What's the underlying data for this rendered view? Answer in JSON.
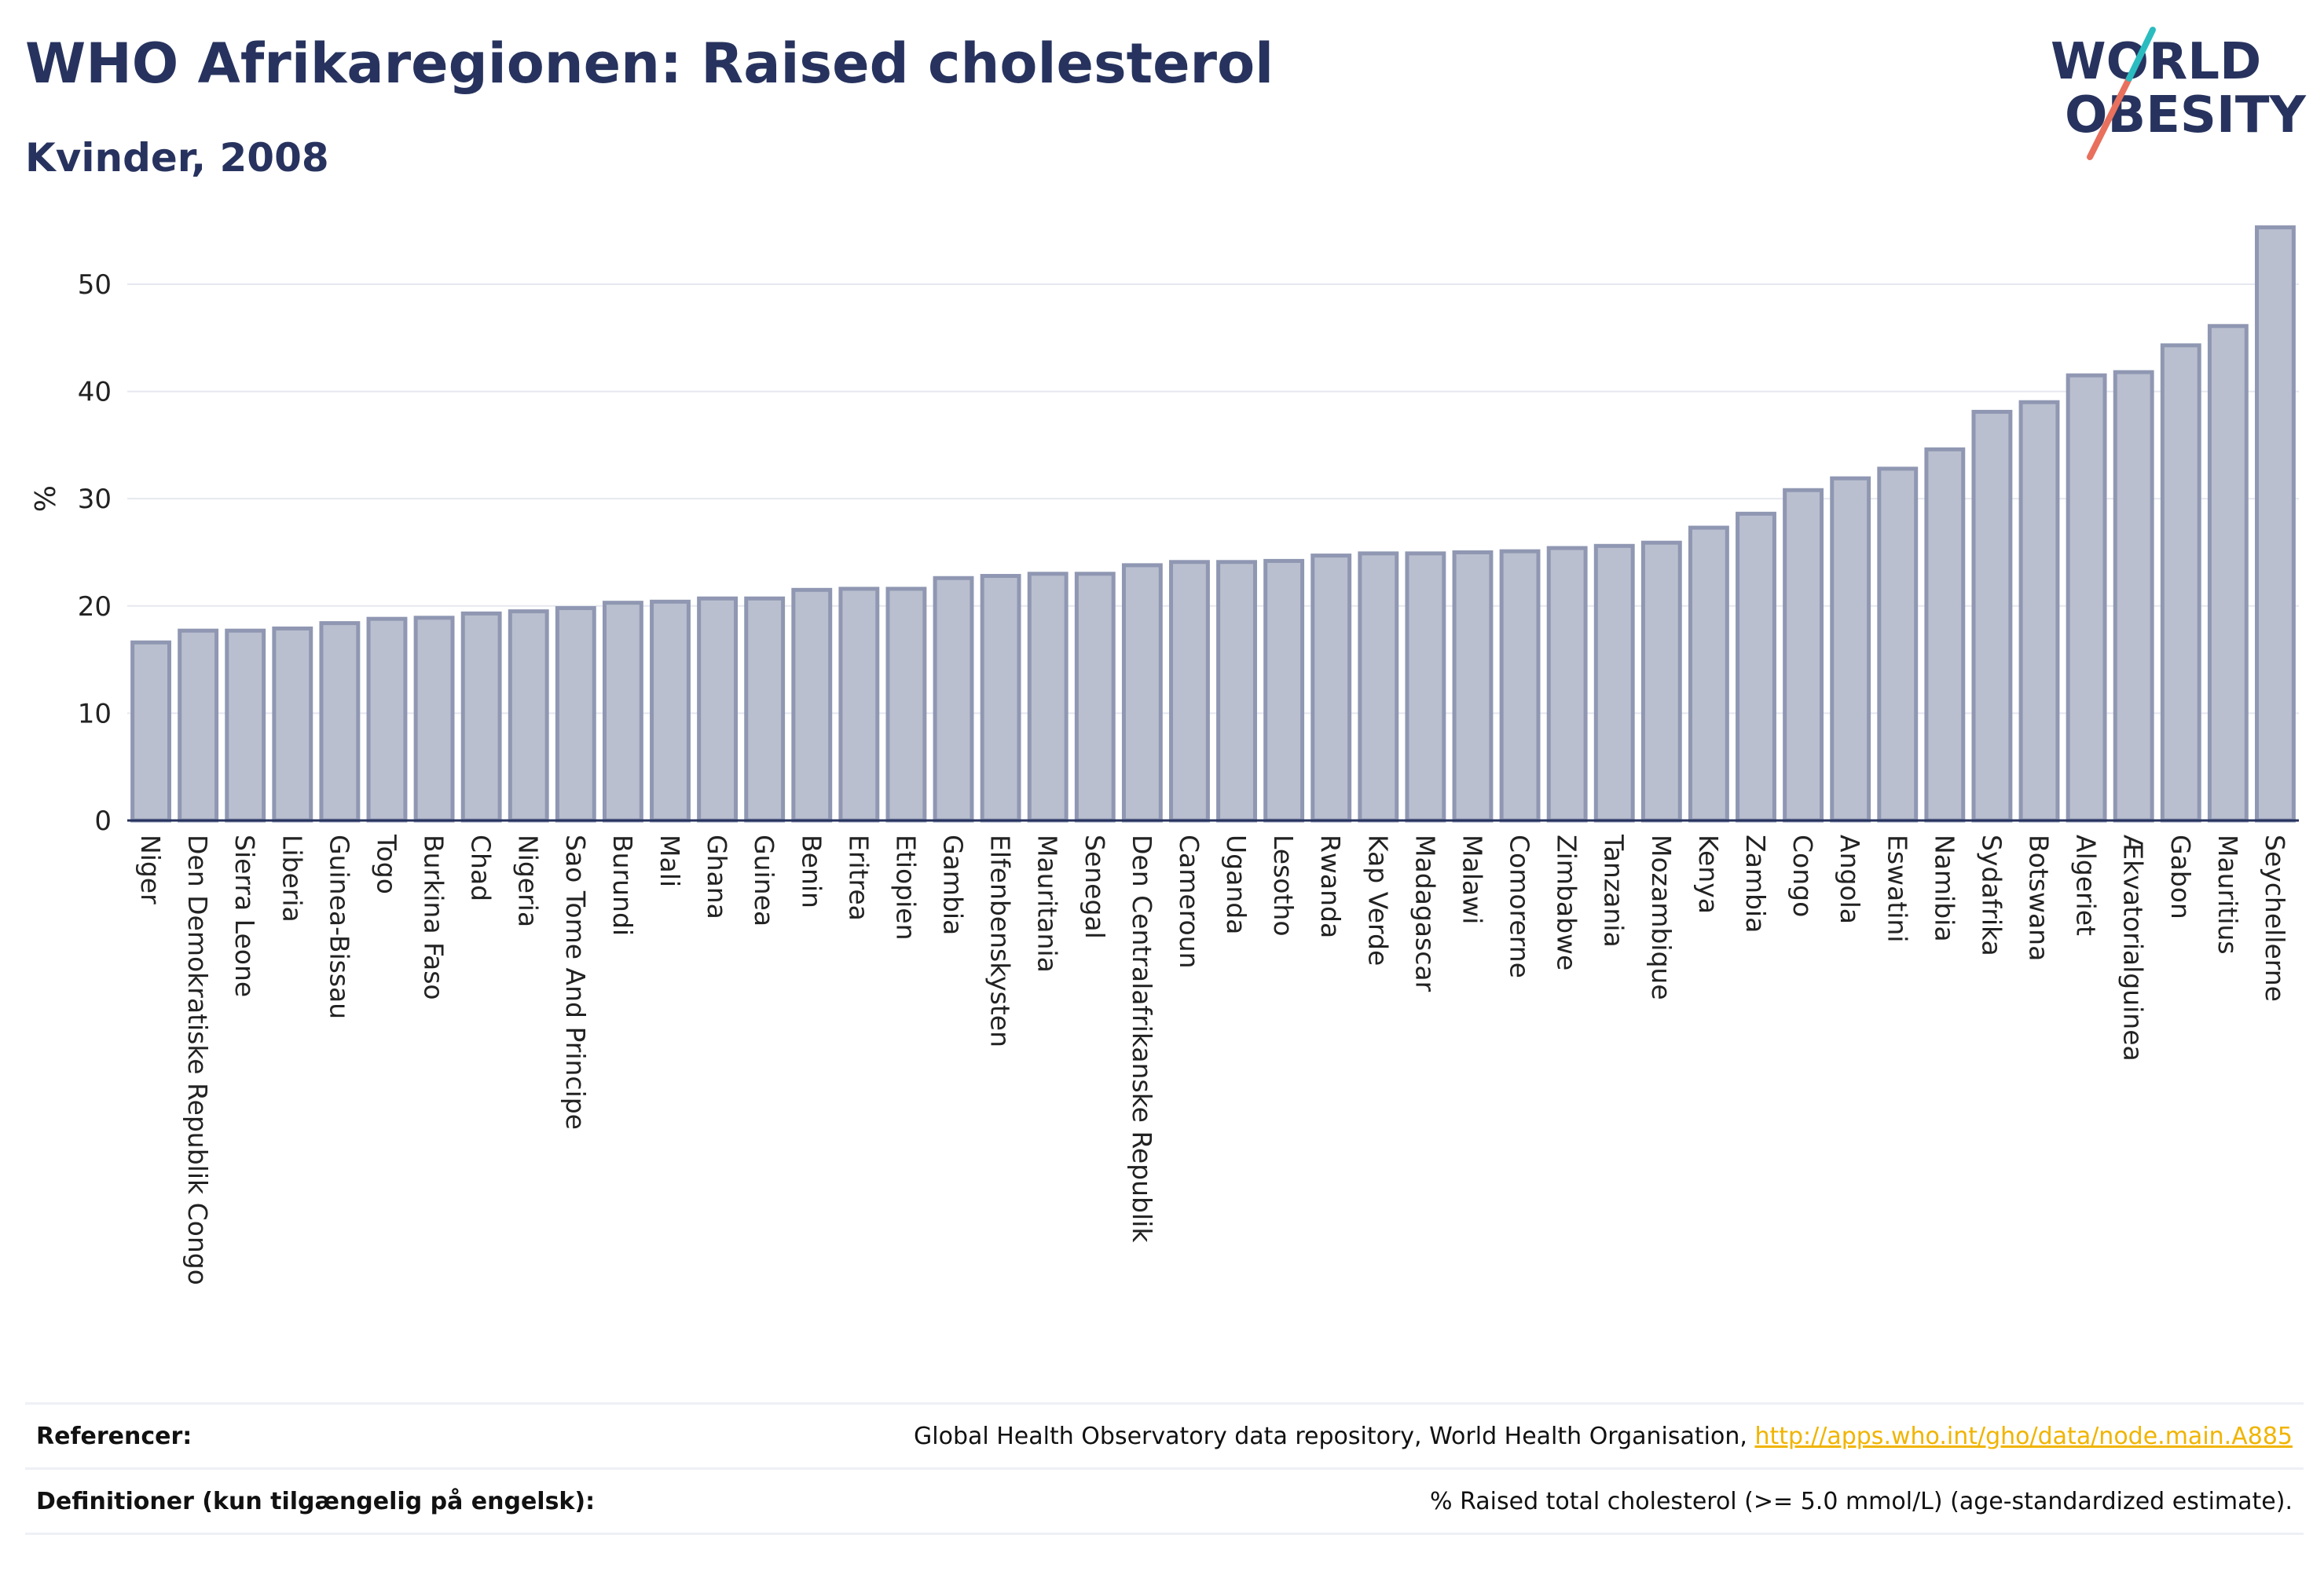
{
  "header": {
    "title": "WHO Afrikaregionen: Raised cholesterol",
    "subtitle": "Kvinder, 2008"
  },
  "logo": {
    "line1": "WORLD",
    "line2": "OBESITY"
  },
  "colors": {
    "bar_fill": "#b9bfce",
    "bar_stroke": "#8f97b2",
    "text": "#27335e",
    "grid": "#e6e8f0",
    "link": "#f0b400"
  },
  "chart_data": {
    "type": "bar",
    "ylabel": "%",
    "xlabel": "",
    "ylim": [
      0,
      56
    ],
    "yticks": [
      0,
      10,
      20,
      30,
      40,
      50
    ],
    "grid": true,
    "categories": [
      "Niger",
      "Den Demokratiske Republik Congo",
      "Sierra Leone",
      "Liberia",
      "Guinea-Bissau",
      "Togo",
      "Burkina Faso",
      "Chad",
      "Nigeria",
      "Sao Tome And Principe",
      "Burundi",
      "Mali",
      "Ghana",
      "Guinea",
      "Benin",
      "Eritrea",
      "Etiopien",
      "Gambia",
      "Elfenbenskysten",
      "Mauritania",
      "Senegal",
      "Den Centralafrikanske Republik",
      "Cameroun",
      "Uganda",
      "Lesotho",
      "Rwanda",
      "Kap Verde",
      "Madagascar",
      "Malawi",
      "Comorerne",
      "Zimbabwe",
      "Tanzania",
      "Mozambique",
      "Kenya",
      "Zambia",
      "Congo",
      "Angola",
      "Eswatini",
      "Namibia",
      "Sydafrika",
      "Botswana",
      "Algeriet",
      "Ækvatorialguinea",
      "Gabon",
      "Mauritius",
      "Seychellerne"
    ],
    "values": [
      16.6,
      17.7,
      17.7,
      17.9,
      18.4,
      18.8,
      18.9,
      19.3,
      19.5,
      19.8,
      20.3,
      20.4,
      20.7,
      20.7,
      21.5,
      21.6,
      21.6,
      22.6,
      22.8,
      23.0,
      23.0,
      23.8,
      24.1,
      24.1,
      24.2,
      24.7,
      24.9,
      24.9,
      25.0,
      25.1,
      25.4,
      25.6,
      25.9,
      27.3,
      28.6,
      30.8,
      31.9,
      32.8,
      34.6,
      38.1,
      39.0,
      41.5,
      41.8,
      44.3,
      46.1,
      55.3
    ]
  },
  "references": {
    "ref_label": "Referencer:",
    "ref_text": "Global Health Observatory data repository, World Health Organisation, ",
    "ref_link": "http://apps.who.int/gho/data/node.main.A885",
    "def_label": "Definitioner (kun tilgængelig på engelsk):",
    "def_text": "% Raised total cholesterol (>= 5.0 mmol/L) (age-standardized estimate)."
  }
}
